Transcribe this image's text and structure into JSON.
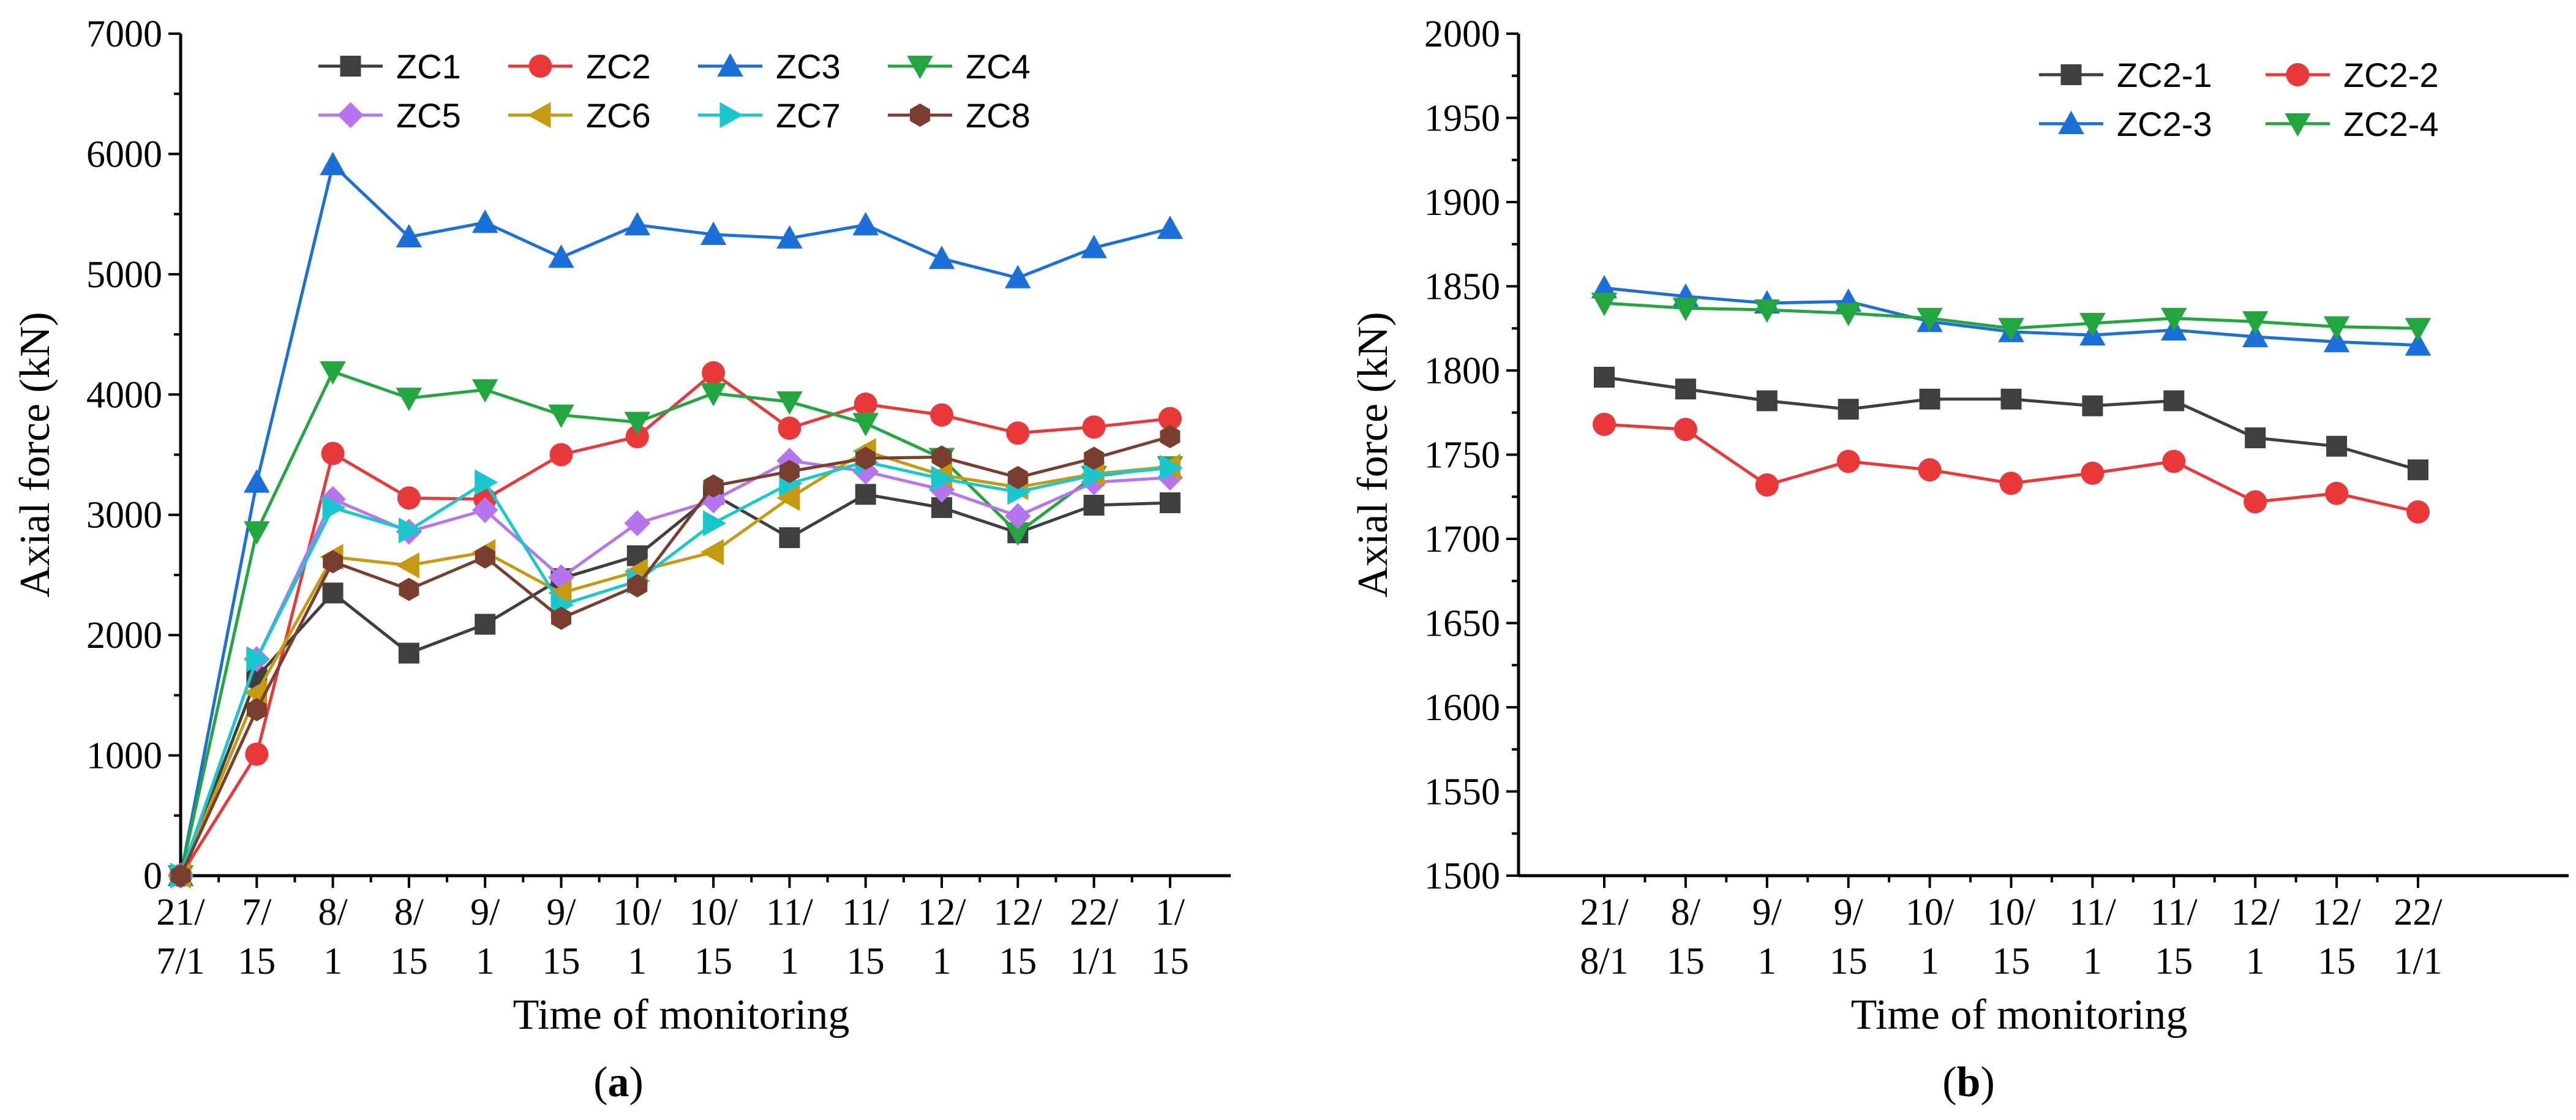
{
  "chart_data": [
    {
      "type": "line",
      "panel_label": "a",
      "xlabel": "Time of monitoring",
      "ylabel": "Axial force (kN)",
      "ylim": [
        0,
        7000
      ],
      "yticks": [
        0,
        1000,
        2000,
        3000,
        4000,
        5000,
        6000,
        7000
      ],
      "categories": [
        [
          "21/",
          "7/1"
        ],
        [
          "7/",
          "15"
        ],
        [
          "8/",
          "1"
        ],
        [
          "8/",
          "15"
        ],
        [
          "9/",
          "1"
        ],
        [
          "9/",
          "15"
        ],
        [
          "10/",
          "1"
        ],
        [
          "10/",
          "15"
        ],
        [
          "11/",
          "1"
        ],
        [
          "11/",
          "15"
        ],
        [
          "12/",
          "1"
        ],
        [
          "12/",
          "15"
        ],
        [
          "22/",
          "1/1"
        ],
        [
          "1/",
          "15"
        ]
      ],
      "legend_position": "top",
      "series": [
        {
          "name": "ZC1",
          "color": "#3f3f3f",
          "marker": "square",
          "values": [
            0,
            1650,
            2350,
            1850,
            2090,
            2470,
            2660,
            3170,
            2810,
            3170,
            3060,
            2850,
            3080,
            3100
          ]
        },
        {
          "name": "ZC2",
          "color": "#e8383a",
          "marker": "circle",
          "values": [
            0,
            1010,
            3510,
            3140,
            3130,
            3500,
            3650,
            4180,
            3720,
            3920,
            3830,
            3680,
            3730,
            3800
          ]
        },
        {
          "name": "ZC3",
          "color": "#1a6fd8",
          "marker": "triangle-up",
          "values": [
            0,
            3270,
            5910,
            5310,
            5430,
            5140,
            5410,
            5330,
            5300,
            5410,
            5130,
            4970,
            5220,
            5380
          ]
        },
        {
          "name": "ZC4",
          "color": "#21a640",
          "marker": "triangle-down",
          "values": [
            0,
            2860,
            4190,
            3970,
            4040,
            3830,
            3770,
            4010,
            3940,
            3760,
            3470,
            2850,
            3320,
            3400
          ]
        },
        {
          "name": "ZC5",
          "color": "#b575ec",
          "marker": "diamond",
          "values": [
            0,
            1800,
            3130,
            2860,
            3040,
            2480,
            2930,
            3120,
            3450,
            3360,
            3210,
            2990,
            3270,
            3310
          ]
        },
        {
          "name": "ZC6",
          "color": "#c69a10",
          "marker": "triangle-left",
          "values": [
            0,
            1520,
            2650,
            2580,
            2690,
            2350,
            2530,
            2690,
            3140,
            3530,
            3330,
            3230,
            3340,
            3400
          ]
        },
        {
          "name": "ZC7",
          "color": "#19c8cc",
          "marker": "triangle-right",
          "values": [
            0,
            1800,
            3060,
            2870,
            3270,
            2250,
            2450,
            2930,
            3260,
            3440,
            3300,
            3190,
            3330,
            3390
          ]
        },
        {
          "name": "ZC8",
          "color": "#7a3e2f",
          "marker": "hexagon",
          "values": [
            0,
            1380,
            2610,
            2380,
            2650,
            2140,
            2410,
            3240,
            3360,
            3470,
            3480,
            3310,
            3470,
            3650
          ]
        }
      ]
    },
    {
      "type": "line",
      "panel_label": "b",
      "xlabel": "Time of monitoring",
      "ylabel": "Axial force (kN)",
      "ylim": [
        1500,
        2000
      ],
      "yticks": [
        1500,
        1550,
        1600,
        1650,
        1700,
        1750,
        1800,
        1850,
        1900,
        1950,
        2000
      ],
      "categories": [
        [
          "21/",
          "8/1"
        ],
        [
          "8/",
          "15"
        ],
        [
          "9/",
          "1"
        ],
        [
          "9/",
          "15"
        ],
        [
          "10/",
          "1"
        ],
        [
          "10/",
          "15"
        ],
        [
          "11/",
          "1"
        ],
        [
          "11/",
          "15"
        ],
        [
          "12/",
          "1"
        ],
        [
          "12/",
          "15"
        ],
        [
          "22/",
          "1/1"
        ]
      ],
      "legend_position": "top-right",
      "series": [
        {
          "name": "ZC2-1",
          "color": "#3f3f3f",
          "marker": "square",
          "values": [
            1796,
            1789,
            1782,
            1777,
            1783,
            1783,
            1779,
            1782,
            1760,
            1755,
            1741
          ]
        },
        {
          "name": "ZC2-2",
          "color": "#e8383a",
          "marker": "circle",
          "values": [
            1768,
            1765,
            1732,
            1746,
            1741,
            1733,
            1739,
            1746,
            1722,
            1727,
            1716
          ]
        },
        {
          "name": "ZC2-3",
          "color": "#1a6fd8",
          "marker": "triangle-up",
          "values": [
            1849,
            1844,
            1840,
            1841,
            1829,
            1823,
            1821,
            1824,
            1820,
            1817,
            1815
          ]
        },
        {
          "name": "ZC2-4",
          "color": "#21a640",
          "marker": "triangle-down",
          "values": [
            1840,
            1837,
            1836,
            1834,
            1831,
            1825,
            1828,
            1831,
            1829,
            1826,
            1825
          ]
        }
      ]
    }
  ]
}
